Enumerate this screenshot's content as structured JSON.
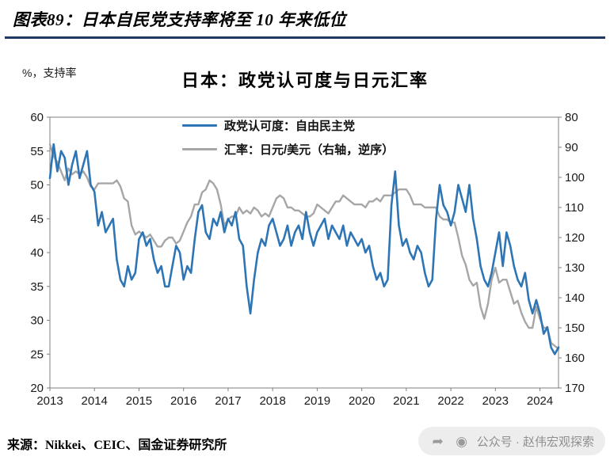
{
  "header": {
    "title": "图表89：日本自民党支持率将至 10 年来低位",
    "accent_color": "#1F3864"
  },
  "footer": {
    "source": "来源：Nikkei、CEIC、国金证券研究所",
    "badge_text": "公众号 · 赵伟宏观探索"
  },
  "chart_data": {
    "type": "line",
    "title": "日本：政党认可度与日元汇率",
    "ylabel_left": "%，支持率",
    "x_tick_labels": [
      "2013",
      "2014",
      "2015",
      "2016",
      "2017",
      "2018",
      "2019",
      "2020",
      "2021",
      "2022",
      "2023",
      "2024"
    ],
    "left_axis": {
      "min": 20,
      "max": 60,
      "step": 5
    },
    "right_axis": {
      "min": 80,
      "max": 170,
      "step": 10,
      "inverted": true
    },
    "grid": false,
    "legend_position": "top-center-inside",
    "series": [
      {
        "name": "政党认可度：自由民主党",
        "axis": "left",
        "color": "#2E75B6",
        "width": 2.6,
        "values": [
          51,
          56,
          52,
          55,
          54,
          50,
          53,
          55,
          51,
          53,
          55,
          50,
          49,
          44,
          46,
          43,
          44,
          45,
          39,
          36,
          35,
          38,
          36,
          37,
          42,
          43,
          41,
          42,
          39,
          37,
          38,
          35,
          35,
          38,
          41,
          40,
          36,
          38,
          37,
          42,
          46,
          47,
          43,
          42,
          45,
          44,
          46,
          43,
          45,
          44,
          46,
          42,
          41,
          35,
          31,
          36,
          40,
          42,
          41,
          44,
          45,
          43,
          41,
          42,
          44,
          41,
          43,
          44,
          42,
          46,
          43,
          41,
          43,
          44,
          45,
          42,
          44,
          43,
          42,
          44,
          41,
          43,
          42,
          41,
          42,
          40,
          41,
          38,
          36,
          37,
          35,
          36,
          47,
          52,
          44,
          41,
          42,
          40,
          39,
          41,
          40,
          37,
          35,
          36,
          45,
          50,
          47,
          46,
          44,
          46,
          50,
          48,
          46,
          50,
          45,
          42,
          38,
          36,
          35,
          37,
          40,
          43,
          38,
          43,
          41,
          38,
          36,
          35,
          37,
          33,
          31,
          33,
          31,
          28,
          29,
          26,
          25,
          26
        ]
      },
      {
        "name": "汇率：日元/美元（右轴，逆序）",
        "axis": "right",
        "color": "#A6A6A6",
        "width": 2.4,
        "values": [
          89,
          93,
          95,
          98,
          101,
          97,
          99,
          98,
          99,
          98,
          100,
          103,
          104,
          102,
          102,
          102,
          102,
          102,
          101,
          103,
          107,
          108,
          116,
          119,
          118,
          119,
          120,
          119,
          121,
          123,
          123,
          121,
          120,
          120,
          122,
          121,
          118,
          115,
          113,
          109,
          109,
          105,
          104,
          101,
          102,
          104,
          109,
          116,
          114,
          113,
          113,
          110,
          112,
          111,
          112,
          110,
          111,
          113,
          112,
          113,
          110,
          107,
          106,
          107,
          110,
          110,
          111,
          111,
          112,
          113,
          113,
          112,
          109,
          110,
          111,
          112,
          110,
          108,
          108,
          106,
          107,
          108,
          109,
          109,
          109,
          110,
          108,
          108,
          107,
          108,
          106,
          106,
          106,
          105,
          104,
          104,
          104,
          106,
          109,
          109,
          109,
          110,
          110,
          110,
          110,
          113,
          114,
          114,
          115,
          115,
          120,
          126,
          129,
          134,
          136,
          135,
          143,
          147,
          142,
          134,
          130,
          135,
          134,
          134,
          138,
          142,
          141,
          145,
          148,
          150,
          150,
          143,
          147,
          150,
          150,
          155,
          156,
          157
        ]
      }
    ]
  }
}
